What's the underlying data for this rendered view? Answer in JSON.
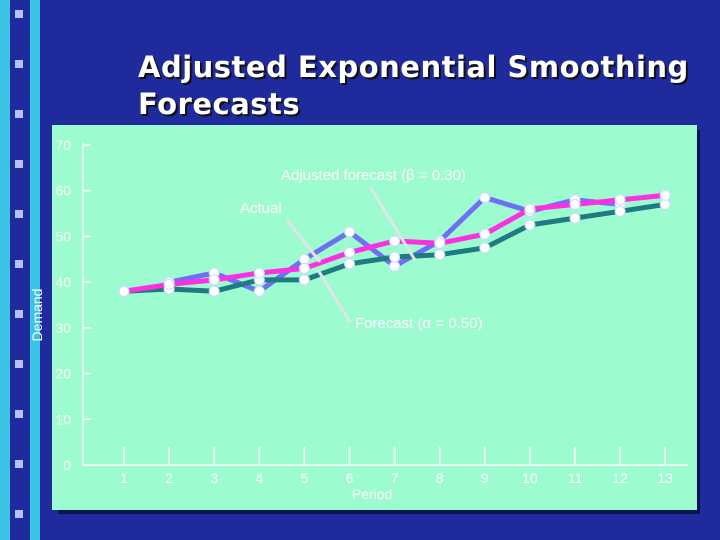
{
  "slide": {
    "title_line1": "Adjusted Exponential Smoothing",
    "title_line2": "Forecasts",
    "background_color": "#1f2a9c",
    "stripe_color": "#39c4e6",
    "panel_color": "#9cfcd0"
  },
  "chart_data": {
    "type": "line",
    "title": "Adjusted Exponential Smoothing Forecasts",
    "xlabel": "Period",
    "ylabel": "Demand",
    "ylim": [
      0,
      70
    ],
    "yticks": [
      0,
      10,
      20,
      30,
      40,
      50,
      60,
      70
    ],
    "categories": [
      1,
      2,
      3,
      4,
      5,
      6,
      7,
      8,
      9,
      10,
      11,
      12,
      13
    ],
    "series": [
      {
        "name": "Forecast (α = 0.50)",
        "color": "#1f7a82",
        "values": [
          38,
          38.5,
          38,
          40.5,
          40.5,
          44,
          45.5,
          46,
          47.5,
          52.5,
          54,
          55.5,
          57
        ]
      },
      {
        "name": "Adjusted forecast (β = 0.30)",
        "color": "#ff2ee0",
        "values": [
          38,
          39.5,
          40.5,
          42,
          43,
          46.5,
          49,
          48.5,
          50.5,
          56,
          57,
          58,
          59
        ]
      },
      {
        "name": "Actual",
        "color": "#6f6ff2",
        "values": [
          null,
          40,
          42,
          38,
          45,
          51,
          43.5,
          49,
          58.5,
          55.5,
          58,
          57,
          null
        ]
      }
    ],
    "annotations": {
      "adjusted": "Adjusted forecast (β = 0.30)",
      "actual": "Actual",
      "forecast": "Forecast (α = 0.50)"
    },
    "grid": false
  }
}
